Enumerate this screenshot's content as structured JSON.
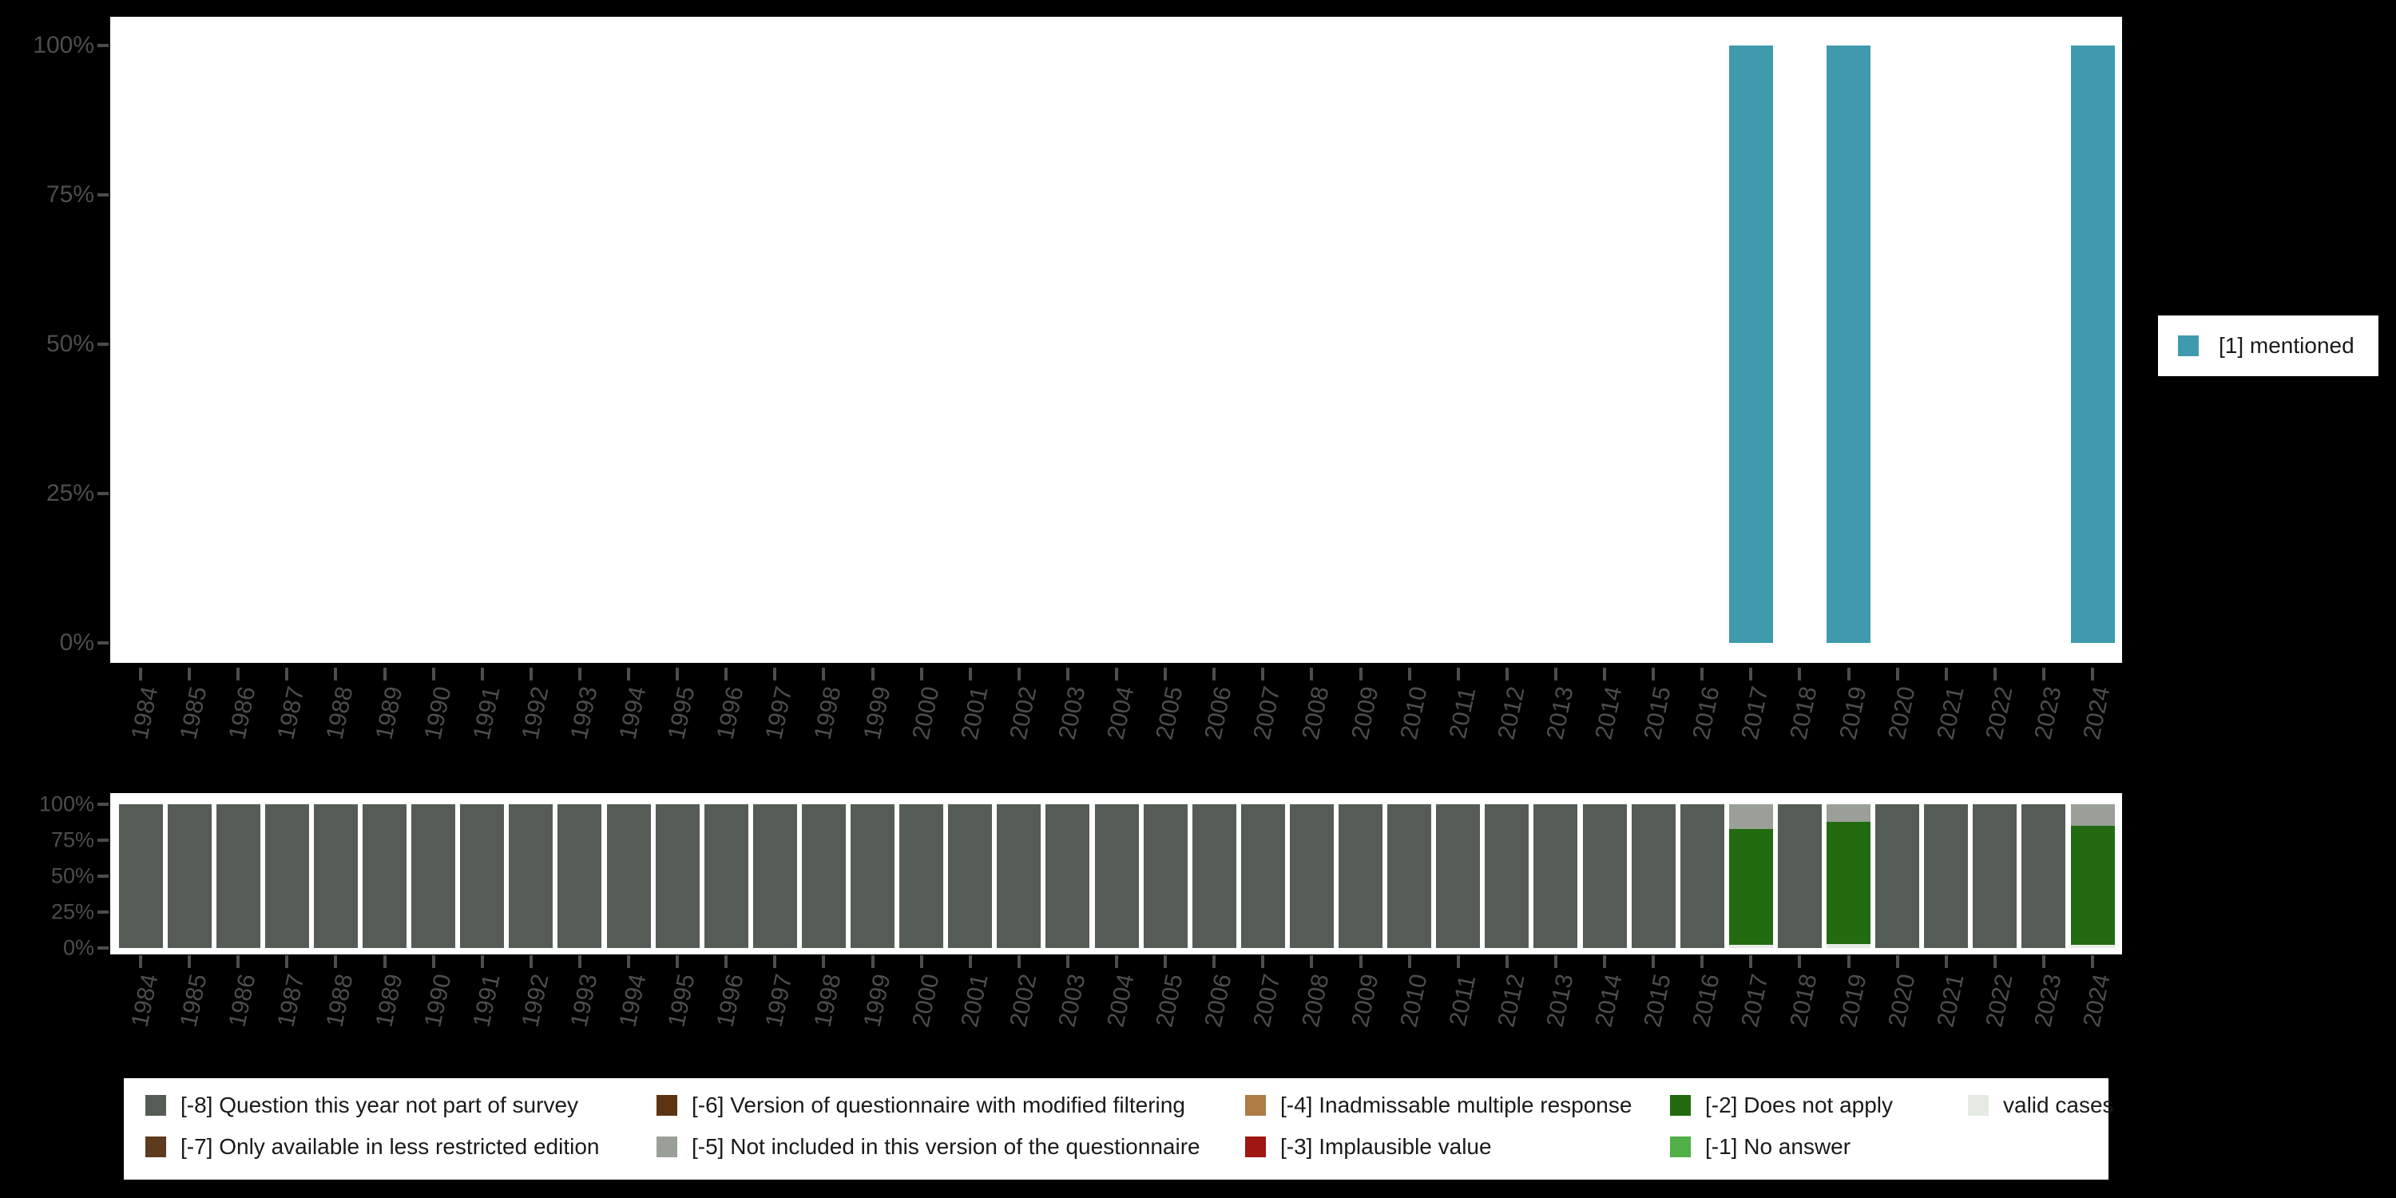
{
  "chart": {
    "background": "#000000",
    "panel_color": "#FFFFFF",
    "axis_text_color": "#4D4D4D",
    "legend_text_color": "#1A1A1A"
  },
  "categories": [
    "1984",
    "1985",
    "1986",
    "1987",
    "1988",
    "1989",
    "1990",
    "1991",
    "1992",
    "1993",
    "1994",
    "1995",
    "1996",
    "1997",
    "1998",
    "1999",
    "2000",
    "2001",
    "2002",
    "2003",
    "2004",
    "2005",
    "2006",
    "2007",
    "2008",
    "2009",
    "2010",
    "2011",
    "2012",
    "2013",
    "2014",
    "2015",
    "2016",
    "2017",
    "2018",
    "2019",
    "2020",
    "2021",
    "2022",
    "2023",
    "2024"
  ],
  "y_ticks": {
    "labels": [
      "0%",
      "25%",
      "50%",
      "75%",
      "100%"
    ],
    "values": [
      0,
      25,
      50,
      75,
      100
    ]
  },
  "chart_data": [
    {
      "type": "bar",
      "panel": "top",
      "title": "",
      "xlabel": "",
      "ylabel": "",
      "ylim": [
        0,
        100
      ],
      "grid": false,
      "legend_position": "right",
      "categories": [
        "1984",
        "1985",
        "1986",
        "1987",
        "1988",
        "1989",
        "1990",
        "1991",
        "1992",
        "1993",
        "1994",
        "1995",
        "1996",
        "1997",
        "1998",
        "1999",
        "2000",
        "2001",
        "2002",
        "2003",
        "2004",
        "2005",
        "2006",
        "2007",
        "2008",
        "2009",
        "2010",
        "2011",
        "2012",
        "2013",
        "2014",
        "2015",
        "2016",
        "2017",
        "2018",
        "2019",
        "2020",
        "2021",
        "2022",
        "2023",
        "2024"
      ],
      "series": [
        {
          "name": "[1] mentioned",
          "color": "#3E9AAC",
          "values": [
            null,
            null,
            null,
            null,
            null,
            null,
            null,
            null,
            null,
            null,
            null,
            null,
            null,
            null,
            null,
            null,
            null,
            null,
            null,
            null,
            null,
            null,
            null,
            null,
            null,
            null,
            null,
            null,
            null,
            null,
            null,
            null,
            null,
            100,
            null,
            100,
            null,
            null,
            null,
            null,
            100
          ]
        }
      ]
    },
    {
      "type": "bar-stacked",
      "panel": "bottom",
      "title": "",
      "xlabel": "",
      "ylabel": "",
      "ylim": [
        0,
        100
      ],
      "grid": false,
      "legend_position": "bottom",
      "stack_order": "bottom-to-top as listed",
      "categories": [
        "1984",
        "1985",
        "1986",
        "1987",
        "1988",
        "1989",
        "1990",
        "1991",
        "1992",
        "1993",
        "1994",
        "1995",
        "1996",
        "1997",
        "1998",
        "1999",
        "2000",
        "2001",
        "2002",
        "2003",
        "2004",
        "2005",
        "2006",
        "2007",
        "2008",
        "2009",
        "2010",
        "2011",
        "2012",
        "2013",
        "2014",
        "2015",
        "2016",
        "2017",
        "2018",
        "2019",
        "2020",
        "2021",
        "2022",
        "2023",
        "2024"
      ],
      "series": [
        {
          "name": "valid cases",
          "color": "#E5EAE3",
          "values": [
            0,
            0,
            0,
            0,
            0,
            0,
            0,
            0,
            0,
            0,
            0,
            0,
            0,
            0,
            0,
            0,
            0,
            0,
            0,
            0,
            0,
            0,
            0,
            0,
            0,
            0,
            0,
            0,
            0,
            0,
            0,
            0,
            0,
            2,
            0,
            3,
            0,
            0,
            0,
            0,
            2
          ]
        },
        {
          "name": "[-2] Does not apply",
          "color": "#226B10",
          "values": [
            0,
            0,
            0,
            0,
            0,
            0,
            0,
            0,
            0,
            0,
            0,
            0,
            0,
            0,
            0,
            0,
            0,
            0,
            0,
            0,
            0,
            0,
            0,
            0,
            0,
            0,
            0,
            0,
            0,
            0,
            0,
            0,
            0,
            81,
            0,
            85,
            0,
            0,
            0,
            0,
            83
          ]
        },
        {
          "name": "[-5] Not included in this version of the questionnaire",
          "color": "#9AA098",
          "values": [
            0,
            0,
            0,
            0,
            0,
            0,
            0,
            0,
            0,
            0,
            0,
            0,
            0,
            0,
            0,
            0,
            0,
            0,
            0,
            0,
            0,
            0,
            0,
            0,
            0,
            0,
            0,
            0,
            0,
            0,
            0,
            0,
            0,
            17,
            0,
            12,
            0,
            0,
            0,
            0,
            15
          ]
        },
        {
          "name": "[-8] Question this year not part of survey",
          "color": "#555C55",
          "values": [
            100,
            100,
            100,
            100,
            100,
            100,
            100,
            100,
            100,
            100,
            100,
            100,
            100,
            100,
            100,
            100,
            100,
            100,
            100,
            100,
            100,
            100,
            100,
            100,
            100,
            100,
            100,
            100,
            100,
            100,
            100,
            100,
            100,
            0,
            100,
            0,
            100,
            100,
            100,
            100,
            0
          ]
        }
      ]
    }
  ],
  "legend_top": {
    "items": [
      {
        "label": "[1] mentioned",
        "color": "#3E9AAC"
      }
    ]
  },
  "legend_bottom": {
    "items": [
      {
        "label": "[-8] Question this year not part of survey",
        "color": "#555C55"
      },
      {
        "label": "[-7] Only available in less restricted edition",
        "color": "#5E3A1E"
      },
      {
        "label": "[-6] Version of questionnaire with modified filtering",
        "color": "#5C3412"
      },
      {
        "label": "[-5] Not included in this version of the questionnaire",
        "color": "#9AA098"
      },
      {
        "label": "[-4] Inadmissable multiple response",
        "color": "#AF7C46"
      },
      {
        "label": "[-3] Implausible value",
        "color": "#A01612"
      },
      {
        "label": "[-2] Does not apply",
        "color": "#226B10"
      },
      {
        "label": "[-1] No answer",
        "color": "#50AF46"
      },
      {
        "label": "valid cases",
        "color": "#E5EAE3"
      }
    ]
  }
}
